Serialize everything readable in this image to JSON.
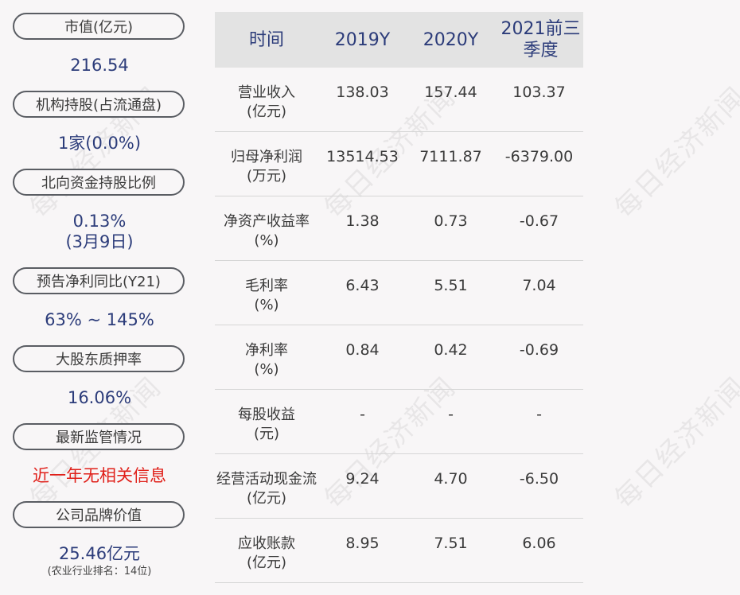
{
  "watermark": "每日经济新闻",
  "left": {
    "items": [
      {
        "label": "市值(亿元)",
        "value": "216.54"
      },
      {
        "label": "机构持股(占流通盘)",
        "value": "1家(0.0%)"
      },
      {
        "label": "北向资金持股比例",
        "value": "0.13%",
        "value2": "(3月9日)"
      },
      {
        "label": "预告净利同比(Y21)",
        "value": "63% ~ 145%"
      },
      {
        "label": "大股东质押率",
        "value": "16.06%"
      },
      {
        "label": "最新监管情况",
        "value": "近一年无相关信息"
      },
      {
        "label": "公司品牌价值",
        "value": "25.46亿元",
        "sub": "(农业行业排名：14位)"
      }
    ]
  },
  "table": {
    "headers": [
      "时间",
      "2019Y",
      "2020Y",
      "2021前三季度"
    ],
    "rows": [
      {
        "label1": "营业收入",
        "label2": "(亿元)",
        "values": [
          "138.03",
          "157.44",
          "103.37"
        ]
      },
      {
        "label1": "归母净利润",
        "label2": "(万元)",
        "values": [
          "13514.53",
          "7111.87",
          "-6379.00"
        ]
      },
      {
        "label1": "净资产收益率",
        "label2": "(%)",
        "values": [
          "1.38",
          "0.73",
          "-0.67"
        ]
      },
      {
        "label1": "毛利率",
        "label2": "(%)",
        "values": [
          "6.43",
          "5.51",
          "7.04"
        ]
      },
      {
        "label1": "净利率",
        "label2": "(%)",
        "values": [
          "0.84",
          "0.42",
          "-0.69"
        ]
      },
      {
        "label1": "每股收益",
        "label2": "(元)",
        "values": [
          "-",
          "-",
          "-"
        ]
      },
      {
        "label1": "经营活动现金流",
        "label2": "(亿元)",
        "values": [
          "9.24",
          "4.70",
          "-6.50"
        ]
      },
      {
        "label1": "应收账款",
        "label2": "(亿元)",
        "values": [
          "8.95",
          "7.51",
          "6.06"
        ]
      }
    ]
  }
}
